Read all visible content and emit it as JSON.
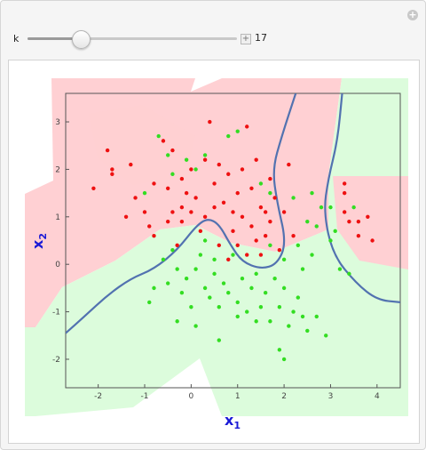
{
  "controls": {
    "k_label": "k",
    "k_value": "17",
    "k_fraction": 0.25,
    "stepper_symbol": "+",
    "options_symbol": "+"
  },
  "chart_data": {
    "type": "scatter",
    "title": "",
    "xlabel": "x1",
    "ylabel": "x2",
    "xlabel_main": "x",
    "xlabel_sub": "1",
    "ylabel_main": "x",
    "ylabel_sub": "2",
    "xlim": [
      -2.7,
      4.5
    ],
    "ylim": [
      -2.6,
      3.6
    ],
    "xticks": [
      -2,
      -1,
      0,
      1,
      2,
      3,
      4
    ],
    "yticks": [
      -2,
      -1,
      0,
      1,
      2,
      3
    ],
    "colors": {
      "class_red": "#ee1111",
      "class_green": "#33dd22",
      "region_red": "#ffd0d3",
      "region_green": "#dcfcdc",
      "boundary": "#5272b0"
    },
    "series": [
      {
        "name": "red",
        "points": [
          [
            -2.1,
            1.6
          ],
          [
            -1.8,
            2.4
          ],
          [
            -1.7,
            2.0
          ],
          [
            -1.7,
            1.9
          ],
          [
            -1.4,
            1.0
          ],
          [
            -1.3,
            2.1
          ],
          [
            -1.2,
            1.4
          ],
          [
            -1.0,
            1.1
          ],
          [
            -0.9,
            0.8
          ],
          [
            -0.8,
            1.7
          ],
          [
            -0.8,
            0.6
          ],
          [
            -0.6,
            2.6
          ],
          [
            -0.5,
            1.6
          ],
          [
            -0.5,
            0.9
          ],
          [
            -0.4,
            2.4
          ],
          [
            -0.4,
            1.1
          ],
          [
            -0.3,
            0.4
          ],
          [
            -0.2,
            1.8
          ],
          [
            -0.2,
            0.9
          ],
          [
            -0.1,
            1.5
          ],
          [
            0.0,
            2.0
          ],
          [
            0.0,
            1.1
          ],
          [
            0.1,
            1.4
          ],
          [
            0.2,
            0.7
          ],
          [
            0.3,
            2.2
          ],
          [
            0.3,
            1.0
          ],
          [
            0.4,
            3.0
          ],
          [
            0.5,
            1.7
          ],
          [
            0.5,
            1.2
          ],
          [
            0.6,
            2.1
          ],
          [
            0.7,
            1.3
          ],
          [
            0.8,
            0.1
          ],
          [
            0.8,
            1.9
          ],
          [
            0.9,
            0.7
          ],
          [
            1.0,
            1.5
          ],
          [
            1.0,
            0.4
          ],
          [
            1.1,
            2.0
          ],
          [
            1.1,
            1.0
          ],
          [
            1.2,
            0.2
          ],
          [
            1.3,
            1.6
          ],
          [
            1.3,
            0.8
          ],
          [
            1.4,
            2.2
          ],
          [
            1.5,
            1.2
          ],
          [
            1.6,
            0.6
          ],
          [
            1.7,
            1.8
          ],
          [
            1.7,
            0.9
          ],
          [
            1.8,
            1.4
          ],
          [
            1.9,
            0.3
          ],
          [
            2.0,
            1.1
          ],
          [
            2.1,
            2.1
          ],
          [
            2.2,
            0.6
          ],
          [
            1.2,
            2.9
          ],
          [
            1.5,
            0.2
          ],
          [
            3.3,
            1.7
          ],
          [
            3.3,
            1.5
          ],
          [
            3.3,
            1.1
          ],
          [
            3.4,
            0.9
          ],
          [
            3.6,
            0.6
          ],
          [
            3.6,
            0.9
          ],
          [
            3.8,
            1.0
          ],
          [
            3.9,
            0.5
          ],
          [
            0.6,
            0.4
          ],
          [
            1.6,
            1.1
          ],
          [
            0.9,
            1.1
          ],
          [
            -0.2,
            1.2
          ],
          [
            1.4,
            0.5
          ]
        ]
      },
      {
        "name": "green",
        "points": [
          [
            -1.0,
            1.5
          ],
          [
            -0.7,
            2.7
          ],
          [
            -0.5,
            2.3
          ],
          [
            -0.4,
            1.9
          ],
          [
            -0.1,
            2.2
          ],
          [
            0.1,
            2.0
          ],
          [
            0.3,
            2.3
          ],
          [
            0.8,
            2.7
          ],
          [
            1.0,
            2.8
          ],
          [
            1.5,
            1.7
          ],
          [
            1.7,
            1.5
          ],
          [
            2.2,
            1.4
          ],
          [
            2.6,
            1.5
          ],
          [
            2.8,
            1.2
          ],
          [
            3.0,
            1.2
          ],
          [
            3.5,
            1.2
          ],
          [
            2.5,
            0.9
          ],
          [
            2.7,
            0.8
          ],
          [
            3.1,
            0.7
          ],
          [
            3.0,
            0.5
          ],
          [
            2.3,
            0.4
          ],
          [
            2.6,
            0.2
          ],
          [
            2.0,
            0.1
          ],
          [
            1.7,
            0.4
          ],
          [
            3.2,
            -0.1
          ],
          [
            3.4,
            -0.2
          ],
          [
            -0.6,
            0.1
          ],
          [
            -0.5,
            -0.4
          ],
          [
            -0.4,
            0.3
          ],
          [
            -0.3,
            -0.1
          ],
          [
            -0.2,
            -0.6
          ],
          [
            -0.1,
            -0.3
          ],
          [
            0.0,
            -0.9
          ],
          [
            0.1,
            -0.1
          ],
          [
            0.2,
            0.2
          ],
          [
            0.3,
            -0.5
          ],
          [
            0.4,
            -0.7
          ],
          [
            0.5,
            -0.2
          ],
          [
            0.6,
            -0.9
          ],
          [
            0.7,
            -0.4
          ],
          [
            0.8,
            -0.6
          ],
          [
            0.9,
            0.2
          ],
          [
            1.0,
            -0.8
          ],
          [
            1.1,
            -0.3
          ],
          [
            1.2,
            -1.0
          ],
          [
            1.3,
            -0.5
          ],
          [
            1.4,
            -0.2
          ],
          [
            1.5,
            -0.9
          ],
          [
            1.6,
            -0.6
          ],
          [
            1.7,
            -1.2
          ],
          [
            1.8,
            -0.3
          ],
          [
            1.9,
            -0.9
          ],
          [
            2.0,
            -0.5
          ],
          [
            2.1,
            -1.3
          ],
          [
            2.2,
            -1.0
          ],
          [
            2.3,
            -0.7
          ],
          [
            2.4,
            -1.1
          ],
          [
            2.5,
            -1.4
          ],
          [
            2.7,
            -1.1
          ],
          [
            2.9,
            -1.5
          ],
          [
            -0.9,
            -0.8
          ],
          [
            -0.3,
            -1.2
          ],
          [
            0.1,
            -1.3
          ],
          [
            0.6,
            -1.6
          ],
          [
            1.0,
            -1.1
          ],
          [
            1.4,
            -1.2
          ],
          [
            1.9,
            -1.8
          ],
          [
            2.0,
            -2.0
          ],
          [
            0.3,
            0.5
          ],
          [
            0.5,
            0.1
          ],
          [
            -0.8,
            -0.5
          ],
          [
            2.4,
            -0.1
          ]
        ]
      }
    ],
    "decision_boundary": [
      [
        [
          -2.7,
          -1.45
        ],
        [
          -2.3,
          -1.1
        ],
        [
          -1.8,
          -0.65
        ],
        [
          -1.3,
          -0.3
        ],
        [
          -0.8,
          -0.1
        ],
        [
          -0.3,
          0.3
        ],
        [
          0.1,
          0.8
        ],
        [
          0.35,
          0.97
        ],
        [
          0.6,
          0.85
        ],
        [
          0.85,
          0.4
        ],
        [
          1.1,
          0.05
        ],
        [
          1.5,
          -0.1
        ],
        [
          1.85,
          0.0
        ],
        [
          2.05,
          0.45
        ],
        [
          1.85,
          1.3
        ],
        [
          1.75,
          2.0
        ],
        [
          1.95,
          2.7
        ],
        [
          2.25,
          3.6
        ]
      ],
      [
        [
          3.25,
          3.6
        ],
        [
          3.15,
          2.6
        ],
        [
          2.95,
          1.8
        ],
        [
          2.85,
          1.1
        ],
        [
          3.05,
          0.2
        ],
        [
          3.55,
          -0.4
        ],
        [
          4.0,
          -0.75
        ],
        [
          4.5,
          -0.8
        ]
      ]
    ]
  }
}
